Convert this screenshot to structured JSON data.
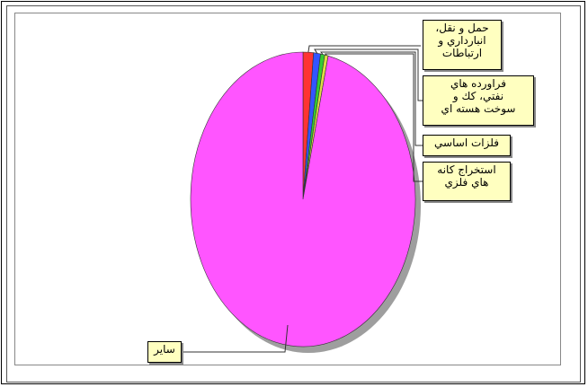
{
  "chart_data": {
    "type": "pie",
    "title": "",
    "slices": [
      {
        "label": "حمل و نقل،\nانبارداري و\nارتباطات",
        "value": 1.5,
        "color": "#ff3333"
      },
      {
        "label": "فراورده هاي\nنفتي، كك و\nسوخت هسته اي",
        "value": 1.0,
        "color": "#3355ff"
      },
      {
        "label": "فلزات اساسي",
        "value": 0.6,
        "color": "#33cc33"
      },
      {
        "label": "استخراج كانه\nهاي فلزي",
        "value": 0.5,
        "color": "#dddd44"
      },
      {
        "label": "ساير",
        "value": 96.4,
        "color": "#ff55ff"
      }
    ],
    "legend": "none",
    "shadow_color": "#9e9e9e"
  }
}
